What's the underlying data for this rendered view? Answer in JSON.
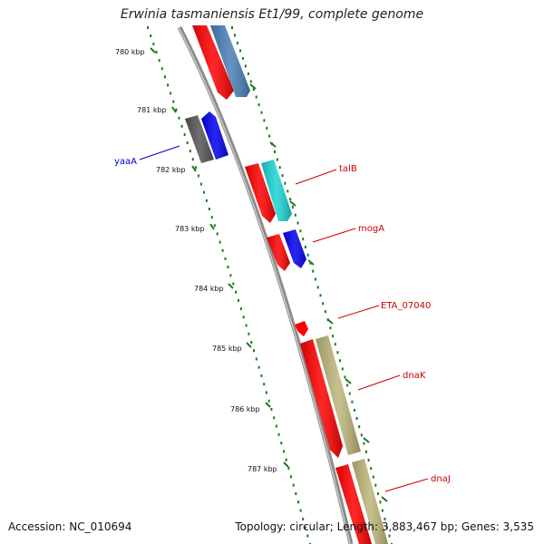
{
  "title": "Erwinia tasmaniensis Et1/99, complete genome",
  "accession": "Accession: NC_010694",
  "summary": "Topology: circular; Length: 3,883,467 bp; Genes: 3,535",
  "colors": {
    "backbone": "#8a8a8a",
    "scale_ticks": "#1a7a1a",
    "label_forward": "#0000cc",
    "label_reverse": "#cc0000",
    "gene_red": "#ff0000",
    "gene_steelblue": "#4a7fb8",
    "gene_cyan": "#1ad4d4",
    "gene_blue": "#0000ee",
    "gene_gray": "#555555",
    "gene_khaki": "#bdb57a"
  },
  "scale_labels": [
    "780 kbp",
    "781 kbp",
    "782 kbp",
    "783 kbp",
    "784 kbp",
    "785 kbp",
    "786 kbp",
    "787 kbp"
  ],
  "gene_labels": [
    {
      "name": "yaaA",
      "strand": "forward"
    },
    {
      "name": "talB",
      "strand": "reverse"
    },
    {
      "name": "mogA",
      "strand": "reverse"
    },
    {
      "name": "ETA_07040",
      "strand": "reverse"
    },
    {
      "name": "dnaK",
      "strand": "reverse"
    },
    {
      "name": "dnaJ",
      "strand": "reverse"
    }
  ]
}
